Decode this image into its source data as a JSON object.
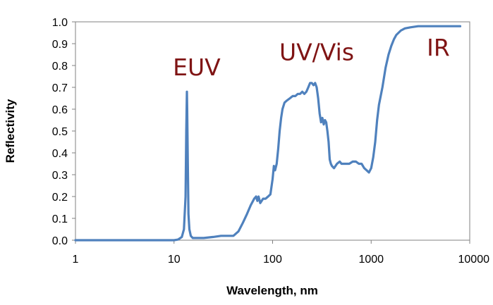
{
  "chart_data": {
    "type": "line",
    "title": "",
    "xlabel": "Wavelength, nm",
    "ylabel": "Reflectivity",
    "xscale": "log",
    "xlim": [
      1,
      10000
    ],
    "ylim": [
      0,
      1.0
    ],
    "xticks": [
      "1",
      "10",
      "100",
      "1000",
      "10000"
    ],
    "yticks": [
      "0.0",
      "0.1",
      "0.2",
      "0.3",
      "0.4",
      "0.5",
      "0.6",
      "0.7",
      "0.8",
      "0.9",
      "1.0"
    ],
    "grid": false,
    "legend": "none",
    "line_color": "#4f81bd",
    "annotation_color": "#7f1414",
    "annotations": [
      {
        "text": "EUV",
        "x": 17,
        "y": 0.755
      },
      {
        "text": "UV/Vis",
        "x": 280,
        "y": 0.825
      },
      {
        "text": "IR",
        "x": 4800,
        "y": 0.845
      }
    ],
    "series": [
      {
        "x": [
          1,
          5,
          10,
          11,
          12,
          12.6,
          13.1,
          13.3,
          13.5,
          13.6,
          13.8,
          14.0,
          14.3,
          14.8,
          15.5,
          17,
          20,
          25,
          30,
          35,
          40,
          45,
          50,
          55,
          60,
          65,
          68,
          70,
          72,
          75,
          80,
          85,
          90,
          95,
          100,
          103,
          106,
          110,
          114,
          118,
          122,
          126,
          132,
          140,
          150,
          160,
          170,
          180,
          190,
          200,
          210,
          220,
          230,
          240,
          250,
          260,
          270,
          280,
          290,
          300,
          310,
          320,
          330,
          340,
          350,
          360,
          370,
          380,
          390,
          400,
          420,
          450,
          480,
          500,
          550,
          600,
          650,
          700,
          750,
          800,
          850,
          900,
          950,
          1000,
          1050,
          1100,
          1150,
          1200,
          1300,
          1400,
          1500,
          1600,
          1700,
          1800,
          2000,
          2200,
          2500,
          3000,
          3500,
          4000,
          5000,
          6000,
          7000,
          8000
        ],
        "values": [
          0.0,
          0.0,
          0.0,
          0.003,
          0.015,
          0.05,
          0.2,
          0.5,
          0.68,
          0.6,
          0.35,
          0.12,
          0.05,
          0.02,
          0.01,
          0.01,
          0.01,
          0.015,
          0.02,
          0.02,
          0.02,
          0.04,
          0.08,
          0.12,
          0.16,
          0.19,
          0.2,
          0.18,
          0.2,
          0.17,
          0.19,
          0.19,
          0.2,
          0.21,
          0.28,
          0.34,
          0.32,
          0.35,
          0.42,
          0.5,
          0.56,
          0.6,
          0.63,
          0.64,
          0.65,
          0.66,
          0.66,
          0.67,
          0.67,
          0.68,
          0.67,
          0.68,
          0.7,
          0.72,
          0.72,
          0.71,
          0.72,
          0.7,
          0.65,
          0.58,
          0.54,
          0.56,
          0.53,
          0.55,
          0.54,
          0.5,
          0.45,
          0.37,
          0.35,
          0.34,
          0.33,
          0.35,
          0.36,
          0.35,
          0.35,
          0.35,
          0.36,
          0.36,
          0.35,
          0.35,
          0.33,
          0.32,
          0.31,
          0.33,
          0.38,
          0.45,
          0.55,
          0.62,
          0.7,
          0.79,
          0.85,
          0.89,
          0.92,
          0.94,
          0.96,
          0.97,
          0.975,
          0.98,
          0.98,
          0.98,
          0.98,
          0.98,
          0.98,
          0.98
        ]
      }
    ]
  }
}
